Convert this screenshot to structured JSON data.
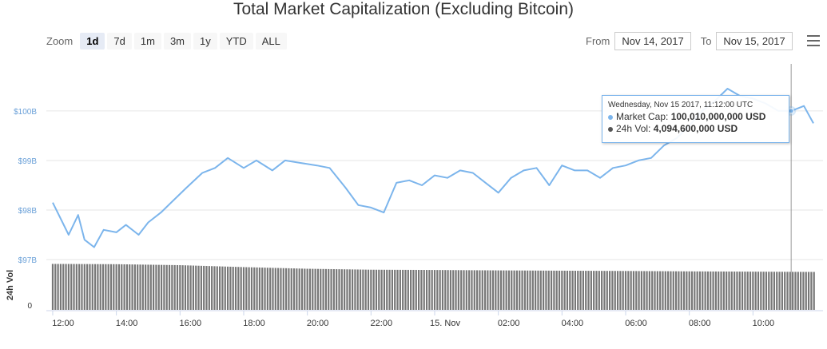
{
  "title": "Total Market Capitalization (Excluding Bitcoin)",
  "toolbar": {
    "zoom_label": "Zoom",
    "buttons": [
      "1d",
      "7d",
      "1m",
      "3m",
      "1y",
      "YTD",
      "ALL"
    ],
    "active": "1d"
  },
  "range": {
    "from_label": "From",
    "from_value": "Nov 14, 2017",
    "to_label": "To",
    "to_value": "Nov 15, 2017"
  },
  "tooltip": {
    "date": "Wednesday, Nov 15 2017, 11:12:00 UTC",
    "rows": [
      {
        "label": "Market Cap:",
        "value": "100,010,000,000 USD",
        "color": "#7cb5ec"
      },
      {
        "label": "24h Vol:",
        "value": "4,094,600,000 USD",
        "color": "#555555"
      }
    ]
  },
  "colors": {
    "line": "#7cb5ec",
    "axis_label": "#6aa0d8",
    "volume": "#777777",
    "grid": "#e6e6e6"
  },
  "chart_data": {
    "type": "line",
    "title": "Total Market Capitalization (Excluding Bitcoin)",
    "x_tick_labels": [
      "12:00",
      "14:00",
      "16:00",
      "18:00",
      "20:00",
      "22:00",
      "15. Nov",
      "02:00",
      "04:00",
      "06:00",
      "08:00",
      "10:00"
    ],
    "x_range_hours": [
      -0.2,
      24.2
    ],
    "series": [
      {
        "name": "Market Cap",
        "unit": "USD billions",
        "y_tick_labels": [
          "$97B",
          "$98B",
          "$99B",
          "$100B"
        ],
        "ylim": [
          97,
          100.95
        ],
        "x_hours": [
          0,
          0.5,
          0.8,
          1.0,
          1.3,
          1.6,
          2.0,
          2.3,
          2.7,
          3.0,
          3.4,
          3.8,
          4.2,
          4.7,
          5.1,
          5.5,
          6.0,
          6.4,
          6.9,
          7.3,
          7.8,
          8.3,
          8.7,
          9.2,
          9.6,
          10.0,
          10.4,
          10.8,
          11.2,
          11.6,
          12.0,
          12.4,
          12.8,
          13.2,
          13.6,
          14.0,
          14.4,
          14.8,
          15.2,
          15.6,
          16.0,
          16.4,
          16.8,
          17.2,
          17.6,
          18.0,
          18.4,
          18.8,
          19.2,
          19.6,
          20.0,
          20.4,
          20.8,
          21.2,
          21.6,
          22.0,
          22.4,
          22.8,
          23.2,
          23.6,
          23.9
        ],
        "values": [
          98.15,
          97.5,
          97.9,
          97.4,
          97.25,
          97.6,
          97.55,
          97.7,
          97.5,
          97.75,
          97.95,
          98.2,
          98.45,
          98.75,
          98.85,
          99.05,
          98.85,
          99.0,
          98.8,
          99.0,
          98.95,
          98.9,
          98.85,
          98.45,
          98.1,
          98.05,
          97.95,
          98.55,
          98.6,
          98.5,
          98.7,
          98.65,
          98.8,
          98.75,
          98.55,
          98.35,
          98.65,
          98.8,
          98.85,
          98.5,
          98.9,
          98.8,
          98.8,
          98.65,
          98.85,
          98.9,
          99.0,
          99.05,
          99.3,
          99.45,
          99.7,
          100.0,
          100.2,
          100.45,
          100.3,
          100.25,
          100.15,
          100.0,
          100.0,
          100.1,
          99.75
        ]
      },
      {
        "name": "24h Vol",
        "axis_title": "24h Vol",
        "y_tick_labels": [
          "0"
        ],
        "unit": "USD billions",
        "x_hours": [
          0,
          2,
          4,
          6,
          8,
          10,
          12,
          14,
          16,
          18,
          20,
          22,
          23.9
        ],
        "values": [
          4.75,
          4.72,
          4.62,
          4.42,
          4.25,
          4.15,
          4.12,
          4.08,
          4.05,
          4.02,
          3.98,
          3.95,
          3.92
        ]
      }
    ],
    "grid": true,
    "legend": "none"
  }
}
